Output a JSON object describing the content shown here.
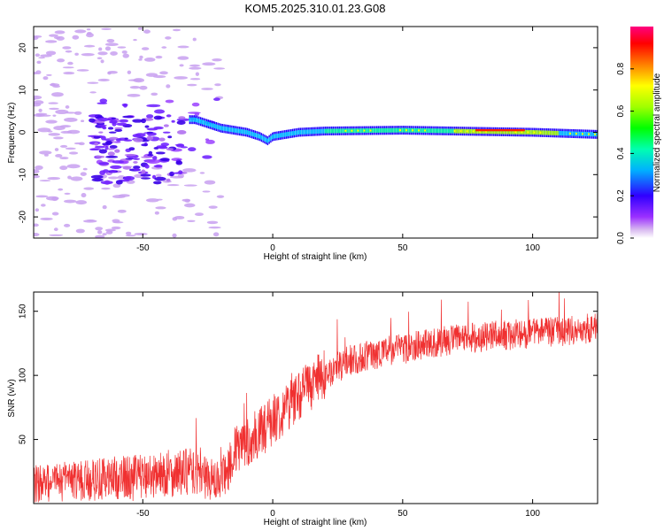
{
  "title": "KOM5.2025.310.01.23.G08",
  "chart_data": [
    {
      "type": "heatmap",
      "xlabel": "Height of straight line (km)",
      "ylabel": "Frequency (Hz)",
      "xlim": [
        -92,
        125
      ],
      "ylim": [
        -25,
        25
      ],
      "xticks": [
        -50,
        0,
        50,
        100
      ],
      "yticks": [
        -20,
        -10,
        0,
        10,
        20
      ],
      "ridge": [
        {
          "x": -30,
          "y": 3
        },
        {
          "x": -25,
          "y": 2
        },
        {
          "x": -20,
          "y": 1
        },
        {
          "x": -15,
          "y": 0.5
        },
        {
          "x": -10,
          "y": 0
        },
        {
          "x": -5,
          "y": -1
        },
        {
          "x": -2,
          "y": -2
        },
        {
          "x": 0,
          "y": -1
        },
        {
          "x": 10,
          "y": 0
        },
        {
          "x": 20,
          "y": 0.3
        },
        {
          "x": 50,
          "y": 0.5
        },
        {
          "x": 80,
          "y": 0.2
        },
        {
          "x": 100,
          "y": 0
        },
        {
          "x": 125,
          "y": -0.5
        }
      ],
      "colorbar": {
        "label": "Normalized spectral amplitude",
        "range": [
          0,
          1
        ],
        "ticks": [
          0.0,
          0.2,
          0.4,
          0.6,
          0.8
        ]
      }
    },
    {
      "type": "line",
      "xlabel": "Height of straight line (km)",
      "ylabel": "SNR (v/v)",
      "xlim": [
        -92,
        125
      ],
      "ylim": [
        0,
        165
      ],
      "xticks": [
        -50,
        0,
        50,
        100
      ],
      "yticks": [
        50,
        100,
        150
      ],
      "color": "#f03030",
      "trend": [
        {
          "x": -92,
          "y": 15
        },
        {
          "x": -60,
          "y": 20
        },
        {
          "x": -45,
          "y": 22
        },
        {
          "x": -30,
          "y": 25
        },
        {
          "x": -20,
          "y": 15
        },
        {
          "x": -15,
          "y": 40
        },
        {
          "x": -5,
          "y": 55
        },
        {
          "x": 0,
          "y": 65
        },
        {
          "x": 10,
          "y": 85
        },
        {
          "x": 20,
          "y": 100
        },
        {
          "x": 30,
          "y": 112
        },
        {
          "x": 50,
          "y": 122
        },
        {
          "x": 70,
          "y": 128
        },
        {
          "x": 100,
          "y": 133
        },
        {
          "x": 125,
          "y": 137
        }
      ]
    }
  ]
}
